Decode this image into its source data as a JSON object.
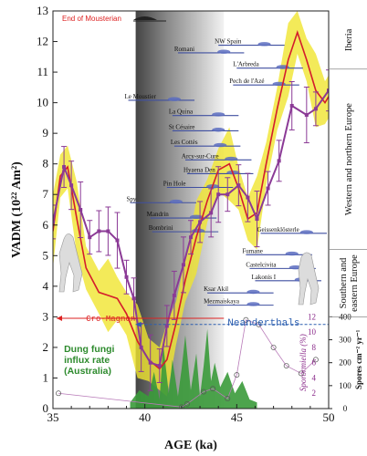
{
  "chart_data": {
    "type": "line",
    "xlabel": "AGE (ka)",
    "ylabel": "VADM (10²² Am²)",
    "xlim": [
      35,
      50
    ],
    "ylim": [
      0,
      13
    ],
    "x_ticks": [
      35,
      40,
      45,
      50
    ],
    "y_ticks": [
      0,
      1,
      2,
      3,
      4,
      5,
      6,
      7,
      8,
      9,
      10,
      11,
      12,
      13
    ],
    "shaded_region": [
      39.5,
      44.3
    ],
    "series": [
      {
        "name": "",
        "color": "#8b3a96",
        "marker": "square",
        "x": [
          35.0,
          35.6,
          36.0,
          36.5,
          37.0,
          37.5,
          38.0,
          38.5,
          39.0,
          39.4,
          39.8,
          40.3,
          40.8,
          41.2,
          41.6,
          42.1,
          42.5,
          43.0,
          43.6,
          44.0,
          44.5,
          45.1,
          45.6,
          46.1,
          46.7,
          47.3,
          48.0,
          48.8,
          49.3,
          50.0
        ],
        "y": [
          6.1,
          7.9,
          7.3,
          6.5,
          5.6,
          5.8,
          5.8,
          5.5,
          4.3,
          3.6,
          2.0,
          1.5,
          1.4,
          2.7,
          3.7,
          4.7,
          5.6,
          6.1,
          6.4,
          7.0,
          7.0,
          7.3,
          6.9,
          6.2,
          7.2,
          8.1,
          9.9,
          9.6,
          9.8,
          10.4
        ]
      },
      {
        "name": "",
        "color": "#d41c2c",
        "x": [
          35.0,
          35.4,
          35.8,
          36.3,
          36.8,
          37.5,
          38.0,
          38.5,
          39.0,
          39.6,
          40.2,
          40.8,
          41.2,
          41.7,
          42.2,
          42.8,
          43.4,
          44.0,
          44.6,
          45.1,
          45.6,
          46.1,
          46.6,
          47.2,
          47.8,
          48.3,
          48.8,
          49.3,
          49.8,
          50.0
        ],
        "y": [
          5.8,
          7.6,
          7.9,
          6.2,
          4.6,
          3.8,
          3.7,
          3.6,
          3.1,
          2.2,
          1.6,
          1.3,
          1.6,
          2.8,
          4.2,
          5.6,
          6.8,
          7.8,
          8.0,
          7.2,
          6.2,
          6.4,
          8.0,
          9.8,
          11.4,
          12.3,
          11.4,
          10.4,
          10.0,
          10.2
        ]
      },
      {
        "name": "Sporormiella (%)",
        "color": "#8b3a96",
        "x": [
          35.3,
          42.0,
          42.3,
          43.2,
          43.7,
          44.5,
          45.0,
          45.5,
          46.2,
          47.0,
          47.7,
          48.5,
          49.3
        ],
        "y": [
          2.0,
          0.2,
          0.6,
          2.2,
          2.6,
          1.3,
          4.4,
          11.6,
          11.0,
          8.0,
          5.6,
          4.6,
          6.4
        ]
      }
    ],
    "confidence_band_color": "#f0e530",
    "dung_fungi": {
      "label": "Dung fungi influx rate (Australia)",
      "color": "#3a9a3a",
      "x_range": [
        39.2,
        46.1
      ]
    },
    "right_axis_pct": {
      "label": "Sporormiella (%)",
      "ticks": [
        0,
        2,
        4,
        6,
        8,
        10,
        12
      ]
    },
    "right_axis_spores": {
      "label": "Spores cm⁻² yr⁻¹",
      "ticks": [
        0,
        100,
        200,
        300,
        400
      ]
    },
    "annotations": {
      "end_mousterian": "End of Mousterian",
      "cro_magnon": "Cro-Magnon",
      "neanderthals": "Neanderthals"
    },
    "regions": [
      {
        "label": "Iberia"
      },
      {
        "label": "Western and northern Europe"
      },
      {
        "label": "Southern and eastern Europe"
      }
    ],
    "sites": [
      {
        "label": "NW Spain",
        "y": 12.0
      },
      {
        "label": "Romani",
        "y": 11.75
      },
      {
        "label": "L'Arbreda",
        "y": 11.25
      },
      {
        "label": "Pech de l'Azé",
        "y": 10.7
      },
      {
        "label": "Le Moustier",
        "y": 10.2
      },
      {
        "label": "La Quina",
        "y": 9.7
      },
      {
        "label": "St Césaire",
        "y": 9.2
      },
      {
        "label": "Les Cottès",
        "y": 8.7
      },
      {
        "label": "Arcy-sur-Cure",
        "y": 8.25
      },
      {
        "label": "Hyaena Den",
        "y": 7.8
      },
      {
        "label": "Pin Hole",
        "y": 7.35
      },
      {
        "label": "Spy",
        "y": 6.85
      },
      {
        "label": "Mandrin",
        "y": 6.35
      },
      {
        "label": "Bombrini",
        "y": 5.9
      },
      {
        "label": "Geissenklösterle",
        "y": 5.85
      },
      {
        "label": "Fumane",
        "y": 5.15
      },
      {
        "label": "Castelcivita",
        "y": 4.7
      },
      {
        "label": "Lakonis I",
        "y": 4.3
      },
      {
        "label": "Ksar Akil",
        "y": 3.9
      },
      {
        "label": "Mezmaiskaya",
        "y": 3.5
      }
    ]
  }
}
